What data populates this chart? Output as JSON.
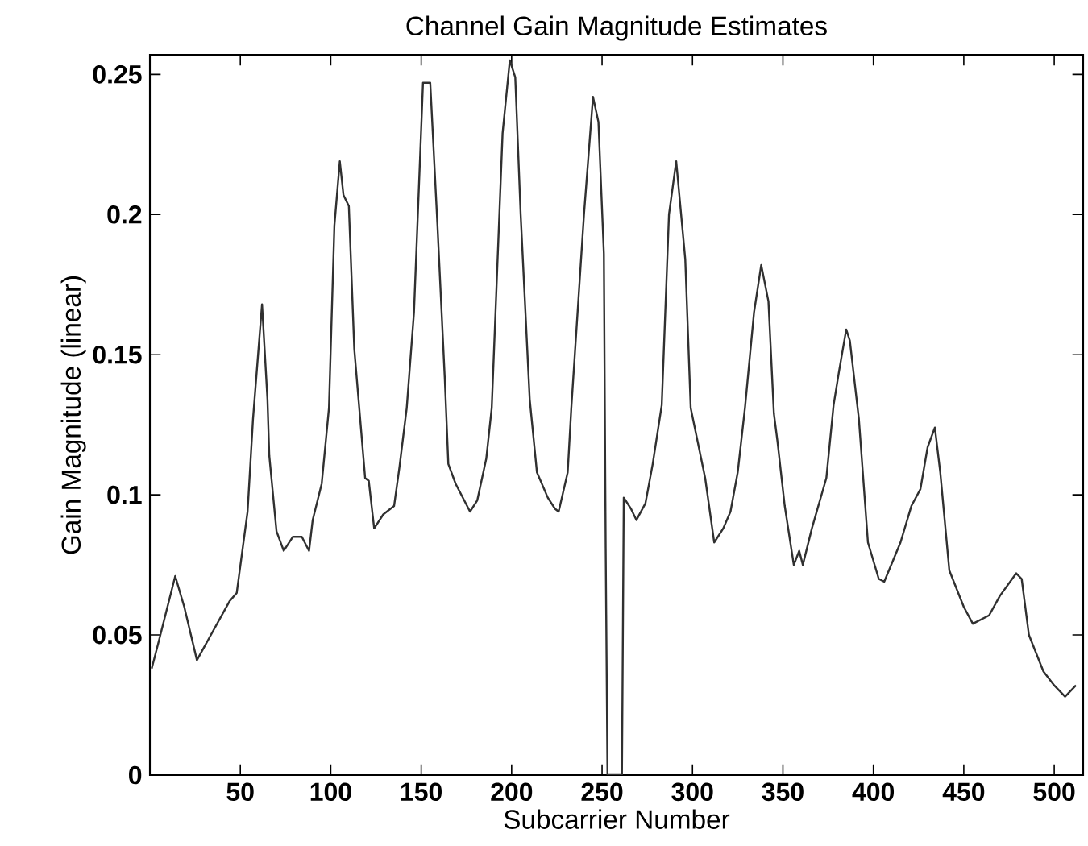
{
  "chart_data": {
    "type": "line",
    "title": "Channel Gain Magnitude Estimates",
    "xlabel": "Subcarrier Number",
    "ylabel": "Gain Magnitude (linear)",
    "xlim": [
      0,
      516
    ],
    "ylim": [
      0,
      0.257
    ],
    "xticks": [
      50,
      100,
      150,
      200,
      250,
      300,
      350,
      400,
      450,
      500
    ],
    "yticks": [
      0,
      0.05,
      {
        "value": 0.1,
        "label": "0.1"
      },
      0.15,
      {
        "value": 0.2,
        "label": "0.2"
      },
      0.25
    ],
    "grid": false,
    "series": [
      {
        "color": "#303030",
        "x": [
          1,
          5,
          14,
          19,
          26,
          32,
          44,
          48,
          54,
          57,
          62,
          65,
          66,
          70,
          74,
          79,
          84,
          88,
          90,
          95,
          99,
          102,
          105,
          107,
          110,
          113,
          119,
          121,
          124,
          129,
          135,
          138,
          142,
          146,
          151,
          155,
          159,
          163,
          165,
          169,
          177,
          181,
          186,
          189,
          195,
          199,
          202,
          205,
          210,
          214,
          220,
          224,
          226,
          231,
          233,
          240,
          245,
          248,
          251,
          252,
          253,
          261,
          262,
          266,
          269,
          274,
          278,
          283,
          287,
          291,
          296,
          299,
          307,
          312,
          317,
          321,
          325,
          329,
          334,
          338,
          342,
          345,
          347,
          351,
          356,
          359,
          361,
          366,
          374,
          378,
          381,
          385,
          387,
          392,
          397,
          403,
          406,
          415,
          421,
          426,
          430,
          434,
          437,
          442,
          450,
          455,
          464,
          470,
          479,
          482,
          486,
          494,
          500,
          506,
          512
        ],
        "values": [
          0.038,
          0.048,
          0.071,
          0.06,
          0.041,
          0.048,
          0.062,
          0.065,
          0.094,
          0.127,
          0.168,
          0.134,
          0.114,
          0.087,
          0.08,
          0.085,
          0.085,
          0.08,
          0.091,
          0.104,
          0.131,
          0.196,
          0.219,
          0.207,
          0.203,
          0.152,
          0.106,
          0.105,
          0.088,
          0.093,
          0.096,
          0.11,
          0.131,
          0.165,
          0.247,
          0.247,
          0.196,
          0.142,
          0.111,
          0.104,
          0.094,
          0.098,
          0.113,
          0.131,
          0.229,
          0.255,
          0.249,
          0.2,
          0.134,
          0.108,
          0.099,
          0.095,
          0.094,
          0.108,
          0.131,
          0.2,
          0.242,
          0.233,
          0.186,
          0.081,
          0,
          0,
          0.099,
          0.095,
          0.091,
          0.097,
          0.111,
          0.132,
          0.2,
          0.219,
          0.184,
          0.131,
          0.106,
          0.083,
          0.088,
          0.094,
          0.108,
          0.131,
          0.165,
          0.182,
          0.169,
          0.129,
          0.119,
          0.096,
          0.075,
          0.08,
          0.075,
          0.088,
          0.106,
          0.132,
          0.144,
          0.159,
          0.155,
          0.127,
          0.083,
          0.07,
          0.069,
          0.083,
          0.096,
          0.102,
          0.117,
          0.124,
          0.108,
          0.073,
          0.06,
          0.054,
          0.057,
          0.064,
          0.072,
          0.07,
          0.05,
          0.037,
          0.032,
          0.028,
          0.032
        ]
      }
    ]
  }
}
